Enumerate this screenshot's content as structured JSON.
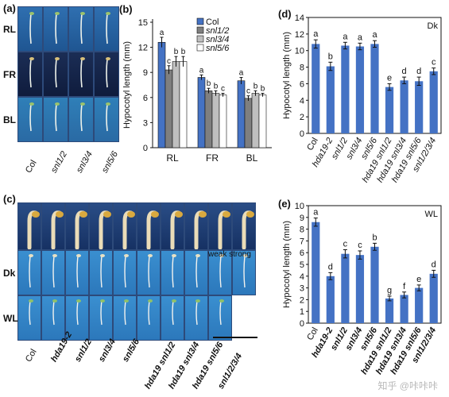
{
  "panel_a": {
    "label": "(a)",
    "rows": [
      "RL",
      "FR",
      "BL"
    ],
    "cols": [
      "Col",
      "snl1/2",
      "snl3/4",
      "snl5/6"
    ]
  },
  "panel_c": {
    "label": "(c)",
    "rows": [
      "Dk",
      "WL"
    ],
    "cols": [
      "Col",
      "hda19-2",
      "snl1/2",
      "snl3/4",
      "snl5/6",
      "hda19 snl1/2",
      "hda19 snl3/4",
      "hda19 snl5/6",
      "snl1/2/3/4"
    ],
    "note_weak": "weak",
    "note_strong": "strong"
  },
  "watermark": "知乎 @咔咔咔",
  "chart_data": [
    {
      "id": "b",
      "panel_label": "(b)",
      "type": "bar",
      "ylabel": "Hypocotyl length (mm)",
      "ylim": [
        0,
        15
      ],
      "yticks": [
        0,
        3,
        6,
        9,
        12,
        15
      ],
      "categories": [
        "RL",
        "FR",
        "BL"
      ],
      "legend_position": "top-center",
      "series": [
        {
          "name": "Col",
          "color": "#4472c4",
          "values": [
            12.6,
            8.4,
            8.0
          ],
          "errors": [
            0.6,
            0.3,
            0.4
          ],
          "letters": [
            "a",
            "a",
            "a"
          ]
        },
        {
          "name": "snl1/2",
          "color": "#7f7f7f",
          "values": [
            9.3,
            6.8,
            5.9
          ],
          "errors": [
            0.5,
            0.3,
            0.3
          ],
          "letters": [
            "c",
            "b",
            "c"
          ]
        },
        {
          "name": "snl3/4",
          "color": "#bfbfbf",
          "values": [
            10.3,
            6.5,
            6.5
          ],
          "errors": [
            0.6,
            0.3,
            0.3
          ],
          "letters": [
            "b",
            "b",
            "b"
          ]
        },
        {
          "name": "snl5/6",
          "color": "#ffffff",
          "values": [
            10.3,
            6.3,
            6.3
          ],
          "errors": [
            0.6,
            0.2,
            0.2
          ],
          "letters": [
            "b",
            "c",
            "b"
          ]
        }
      ]
    },
    {
      "id": "d",
      "panel_label": "(d)",
      "type": "bar",
      "corner_label": "Dk",
      "ylabel": "Hypocotyl length (mm)",
      "ylim": [
        0,
        14
      ],
      "yticks": [
        0,
        2,
        4,
        6,
        8,
        10,
        12,
        14
      ],
      "color": "#4472c4",
      "categories": [
        "Col",
        "hda19-2",
        "snl1/2",
        "snl3/4",
        "snl5/6",
        "hda19 snl1/2",
        "hda19 snl3/4",
        "hda19 snl5/6",
        "snl1/2/3/4"
      ],
      "values": [
        10.8,
        8.1,
        10.6,
        10.5,
        10.8,
        5.6,
        6.4,
        6.3,
        7.5
      ],
      "errors": [
        0.5,
        0.5,
        0.4,
        0.4,
        0.4,
        0.4,
        0.4,
        0.5,
        0.4
      ],
      "letters": [
        "a",
        "b",
        "a",
        "a",
        "a",
        "e",
        "d",
        "d",
        "c"
      ]
    },
    {
      "id": "e",
      "panel_label": "(e)",
      "type": "bar",
      "corner_label": "WL",
      "ylabel": "Hypocotyl length (mm)",
      "ylim": [
        0,
        10
      ],
      "yticks": [
        0,
        1,
        2,
        3,
        4,
        5,
        6,
        7,
        8,
        9,
        10
      ],
      "color": "#4472c4",
      "categories": [
        "Col",
        "hda19-2",
        "snl1/2",
        "snl3/4",
        "snl5/6",
        "hda19 snl1/2",
        "hda19 snl3/4",
        "hda19 snl5/6",
        "snl1/2/3/4"
      ],
      "values": [
        8.6,
        4.0,
        5.9,
        5.8,
        6.5,
        2.1,
        2.4,
        3.0,
        4.2
      ],
      "errors": [
        0.35,
        0.3,
        0.35,
        0.35,
        0.3,
        0.2,
        0.25,
        0.25,
        0.3
      ],
      "letters": [
        "a",
        "d",
        "c",
        "c",
        "b",
        "g",
        "f",
        "e",
        "d"
      ]
    }
  ]
}
